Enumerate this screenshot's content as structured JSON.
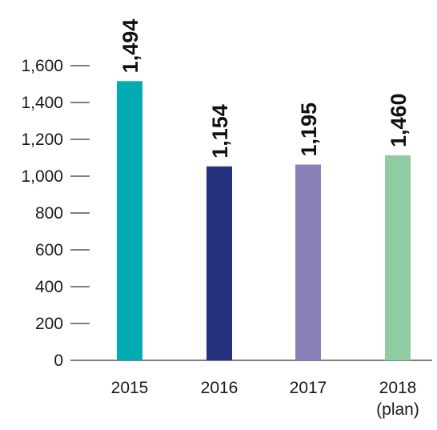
{
  "chart_data": {
    "type": "bar",
    "title": "",
    "xlabel": "",
    "ylabel": "",
    "ylim": [
      0,
      1600
    ],
    "yticks": [
      0,
      200,
      400,
      600,
      800,
      1000,
      1200,
      1400,
      1600
    ],
    "ytick_labels": [
      "0",
      "200",
      "400",
      "600",
      "800",
      "1,000",
      "1,200",
      "1,400",
      "1,600"
    ],
    "grid": false,
    "categories": [
      {
        "label": "2015",
        "sublabel": ""
      },
      {
        "label": "2016",
        "sublabel": ""
      },
      {
        "label": "2017",
        "sublabel": ""
      },
      {
        "label": "2018",
        "sublabel": "(plan)"
      }
    ],
    "values": [
      1494,
      1154,
      1195,
      1460
    ],
    "bar_heights_shown": [
      1516,
      1053,
      1063,
      1113
    ],
    "data_labels": [
      "1,494",
      "1,154",
      "1,195",
      "1,460"
    ],
    "colors": [
      "#00abb2",
      "#26327e",
      "#8a81b8",
      "#8fcba3"
    ]
  }
}
